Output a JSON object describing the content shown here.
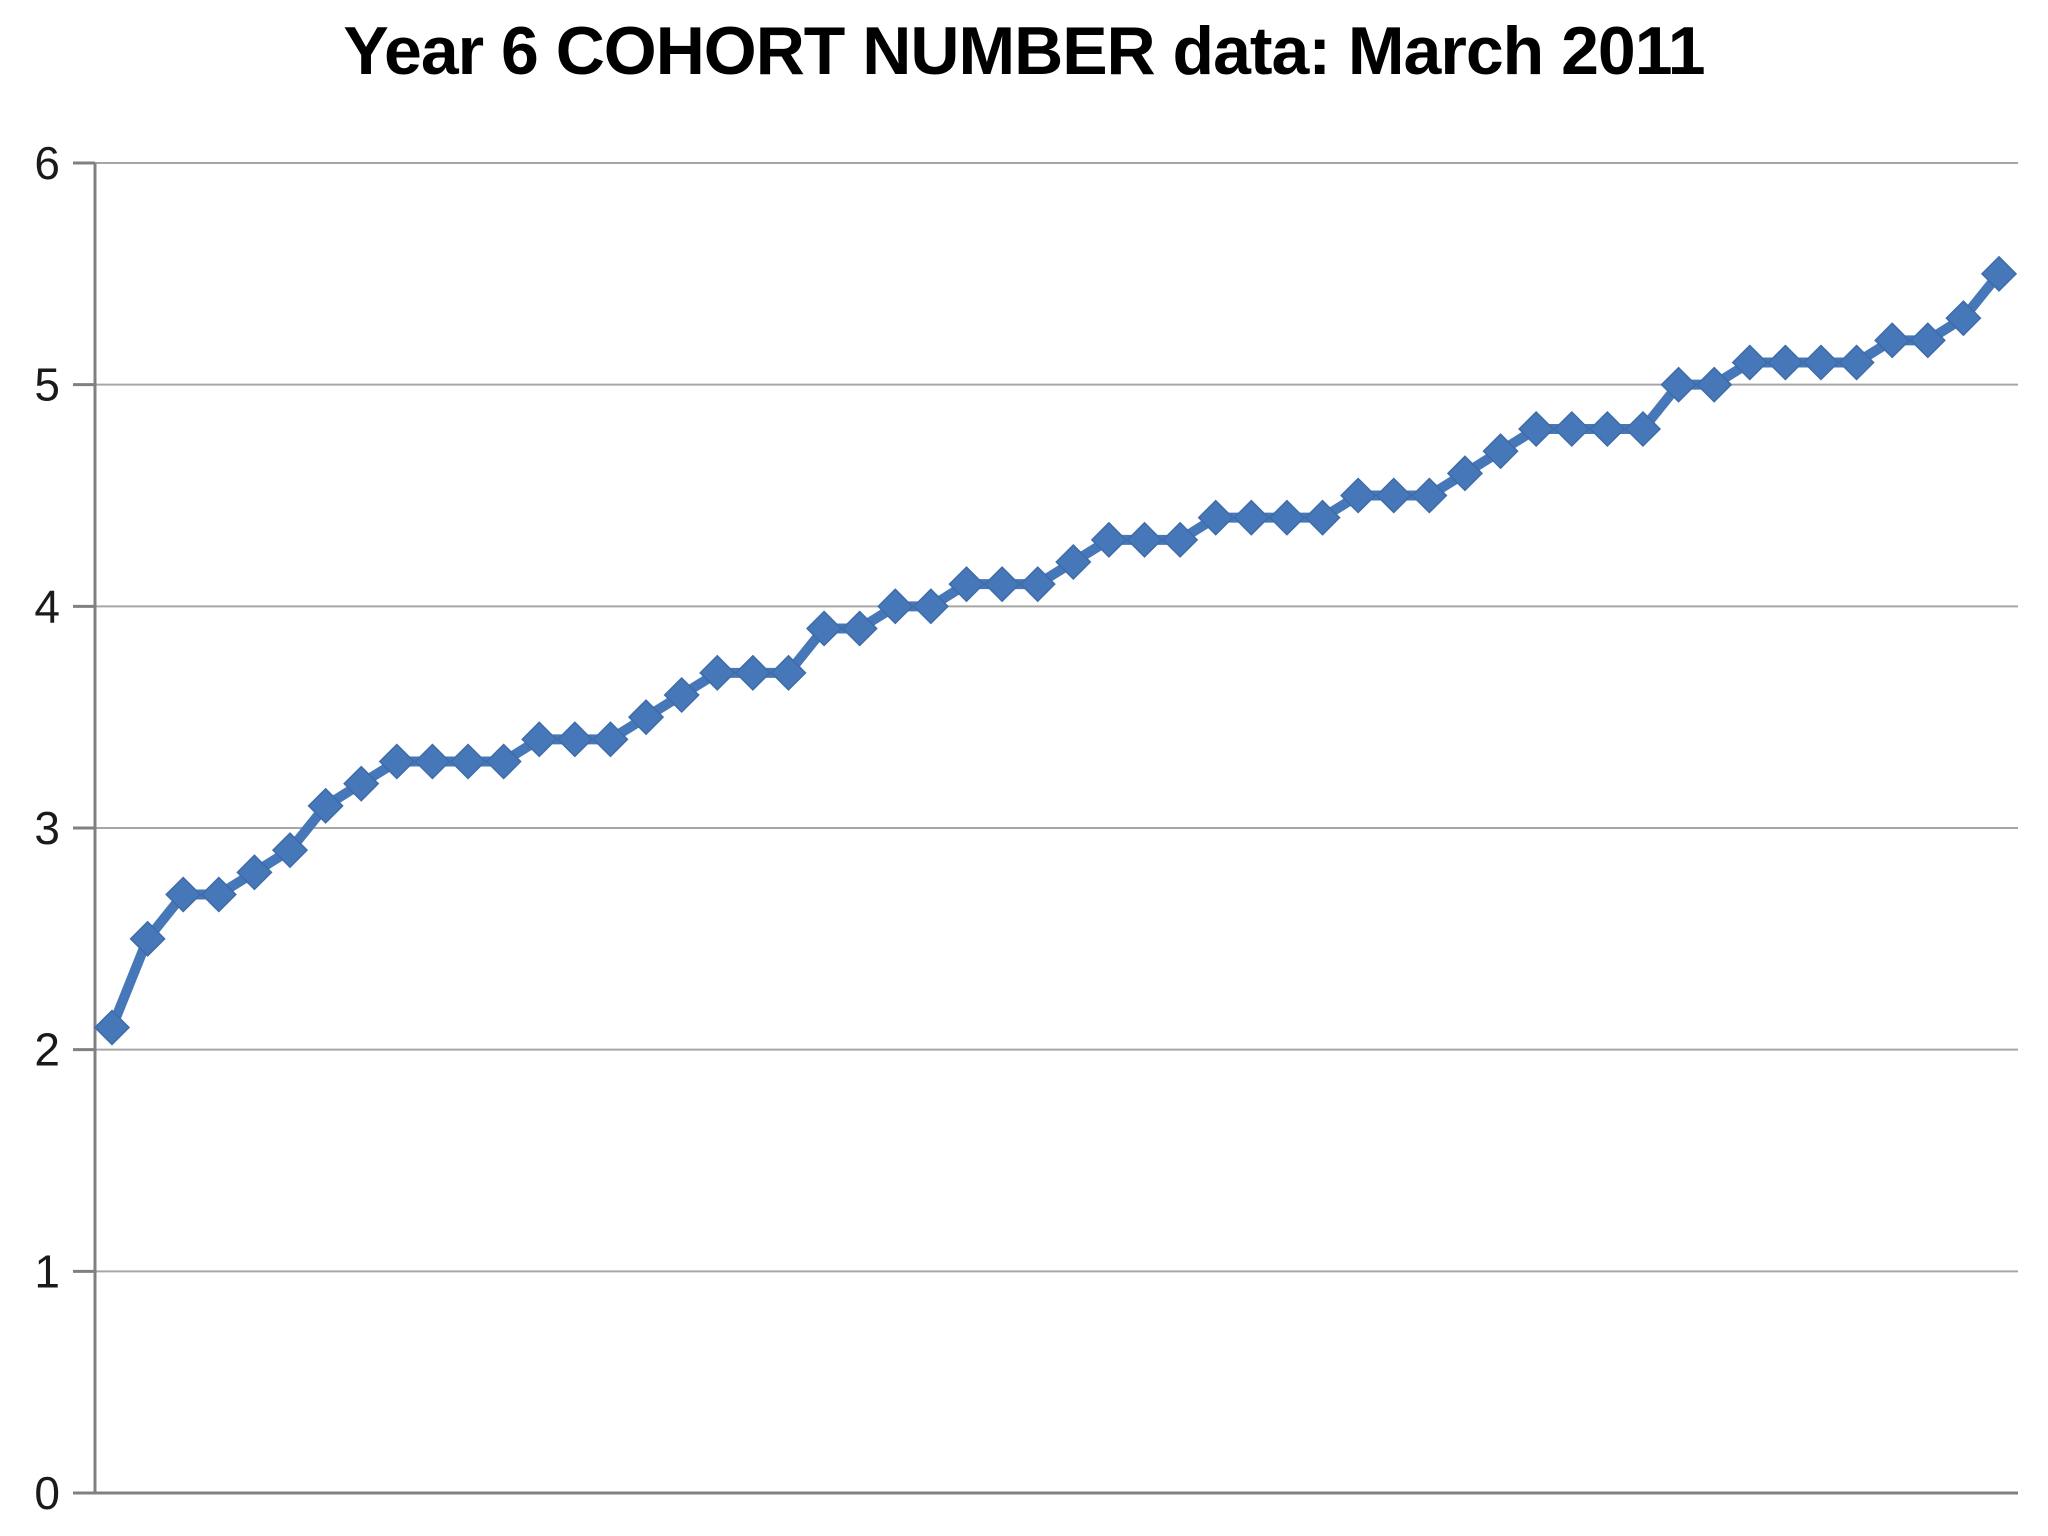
{
  "title": "Year 6 COHORT NUMBER data: March 2011",
  "y_axis": {
    "tick_labels": [
      "0",
      "1",
      "2",
      "3",
      "4",
      "5",
      "6"
    ]
  },
  "x_axis": {
    "tick_labels_visible": false
  },
  "chart_data": {
    "type": "line",
    "title": "Year 6 COHORT NUMBER data: March 2011",
    "point_count": 54,
    "values": [
      2.1,
      2.5,
      2.7,
      2.7,
      2.8,
      2.9,
      3.1,
      3.2,
      3.3,
      3.3,
      3.3,
      3.3,
      3.4,
      3.4,
      3.4,
      3.5,
      3.6,
      3.7,
      3.7,
      3.7,
      3.9,
      3.9,
      4.0,
      4.0,
      4.1,
      4.1,
      4.1,
      4.2,
      4.3,
      4.3,
      4.3,
      4.4,
      4.4,
      4.4,
      4.4,
      4.5,
      4.5,
      4.5,
      4.6,
      4.7,
      4.8,
      4.8,
      4.8,
      4.8,
      5.0,
      5.0,
      5.1,
      5.1,
      5.1,
      5.1,
      5.2,
      5.2,
      5.3,
      5.5
    ],
    "xlabel": "",
    "ylabel": "",
    "ylim": [
      0,
      6
    ],
    "yticks": [
      0,
      1,
      2,
      3,
      4,
      5,
      6
    ],
    "grid": "horizontal",
    "legend": "none",
    "marker": "diamond",
    "colors": {
      "series": "#4677B8",
      "marker_edge": "#3E6CA8",
      "gridline": "#A6A6A6",
      "axis": "#808080",
      "title_text": "#000000"
    }
  }
}
